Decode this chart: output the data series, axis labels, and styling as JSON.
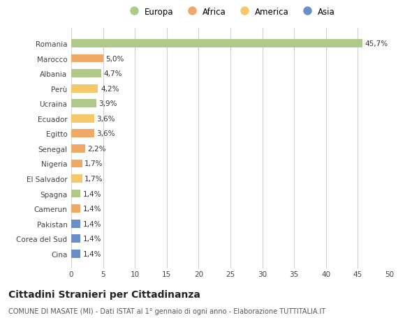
{
  "countries": [
    "Romania",
    "Marocco",
    "Albania",
    "Perù",
    "Ucraina",
    "Ecuador",
    "Egitto",
    "Senegal",
    "Nigeria",
    "El Salvador",
    "Spagna",
    "Camerun",
    "Pakistan",
    "Corea del Sud",
    "Cina"
  ],
  "values": [
    45.7,
    5.0,
    4.7,
    4.2,
    3.9,
    3.6,
    3.6,
    2.2,
    1.7,
    1.7,
    1.4,
    1.4,
    1.4,
    1.4,
    1.4
  ],
  "labels": [
    "45,7%",
    "5,0%",
    "4,7%",
    "4,2%",
    "3,9%",
    "3,6%",
    "3,6%",
    "2,2%",
    "1,7%",
    "1,7%",
    "1,4%",
    "1,4%",
    "1,4%",
    "1,4%",
    "1,4%"
  ],
  "continents": [
    "Europa",
    "Africa",
    "Europa",
    "America",
    "Europa",
    "America",
    "Africa",
    "Africa",
    "Africa",
    "America",
    "Europa",
    "Africa",
    "Asia",
    "Asia",
    "Asia"
  ],
  "continent_colors": {
    "Europa": "#aec98a",
    "Africa": "#f0a868",
    "America": "#f5c96a",
    "Asia": "#6a8fc8"
  },
  "legend_order": [
    "Europa",
    "Africa",
    "America",
    "Asia"
  ],
  "legend_colors": [
    "#aec98a",
    "#f0a868",
    "#f5c96a",
    "#6a8fc8"
  ],
  "xlim": [
    0,
    50
  ],
  "xticks": [
    0,
    5,
    10,
    15,
    20,
    25,
    30,
    35,
    40,
    45,
    50
  ],
  "title": "Cittadini Stranieri per Cittadinanza",
  "subtitle": "COMUNE DI MASATE (MI) - Dati ISTAT al 1° gennaio di ogni anno - Elaborazione TUTTITALIA.IT",
  "bg_color": "#ffffff",
  "grid_color": "#d0d0d0",
  "bar_height": 0.55,
  "label_fontsize": 7.5,
  "ytick_fontsize": 7.5,
  "xtick_fontsize": 7.5,
  "title_fontsize": 10,
  "subtitle_fontsize": 7
}
